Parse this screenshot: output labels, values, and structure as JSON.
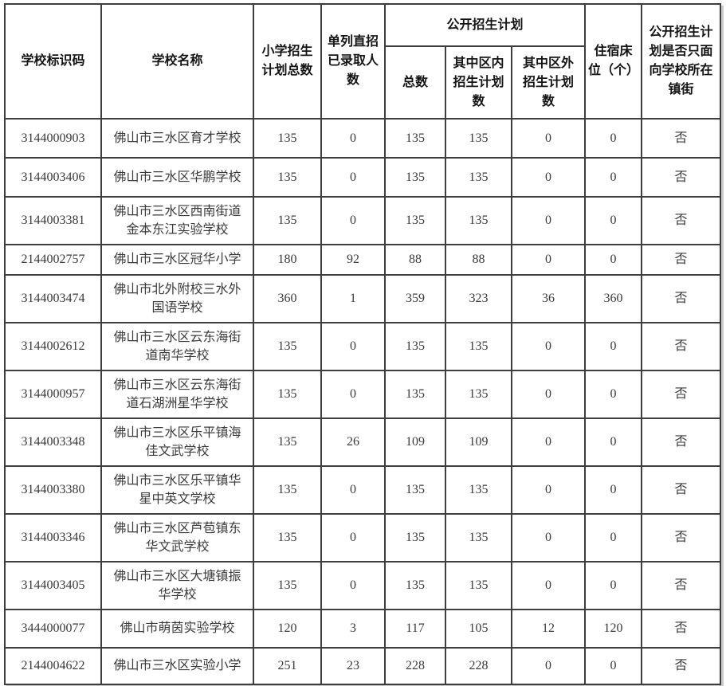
{
  "table": {
    "headers": {
      "school_id": "学校标识码",
      "school_name": "学校名称",
      "primary_plan_total": "小学招生\n计划总数",
      "direct_admitted": "单列直招\n已录取人\n数",
      "public_plan_group": "公开招生计划",
      "public_total": "总数",
      "in_district": "其中区内\n招生计划\n数",
      "out_district": "其中区外\n招生计划\n数",
      "beds": "住宿床\n位（个）",
      "only_local": "公开招生计\n划是否只面\n向学校所在\n镇街"
    },
    "rows": [
      {
        "id": "3144000903",
        "name": "佛山市三水区育才学校",
        "plan_total": "135",
        "direct_admitted": "0",
        "public_total": "135",
        "in_district": "135",
        "out_district": "0",
        "beds": "0",
        "only_local": "否"
      },
      {
        "id": "3144003406",
        "name": "佛山市三水区华鹏学校",
        "plan_total": "135",
        "direct_admitted": "0",
        "public_total": "135",
        "in_district": "135",
        "out_district": "0",
        "beds": "0",
        "only_local": "否"
      },
      {
        "id": "3144003381",
        "name": "佛山市三水区西南街道金本东江实验学校",
        "plan_total": "135",
        "direct_admitted": "0",
        "public_total": "135",
        "in_district": "135",
        "out_district": "0",
        "beds": "0",
        "only_local": "否"
      },
      {
        "id": "2144002757",
        "name": "佛山市三水区冠华小学",
        "plan_total": "180",
        "direct_admitted": "92",
        "public_total": "88",
        "in_district": "88",
        "out_district": "0",
        "beds": "0",
        "only_local": "否"
      },
      {
        "id": "3144003474",
        "name": "佛山市北外附校三水外国语学校",
        "plan_total": "360",
        "direct_admitted": "1",
        "public_total": "359",
        "in_district": "323",
        "out_district": "36",
        "beds": "360",
        "only_local": "否"
      },
      {
        "id": "3144002612",
        "name": "佛山市三水区云东海街道南华学校",
        "plan_total": "135",
        "direct_admitted": "0",
        "public_total": "135",
        "in_district": "135",
        "out_district": "0",
        "beds": "0",
        "only_local": "否"
      },
      {
        "id": "3144000957",
        "name": "佛山市三水区云东海街道石湖洲星华学校",
        "plan_total": "135",
        "direct_admitted": "0",
        "public_total": "135",
        "in_district": "135",
        "out_district": "0",
        "beds": "0",
        "only_local": "否"
      },
      {
        "id": "3144003348",
        "name": "佛山市三水区乐平镇海佳文武学校",
        "plan_total": "135",
        "direct_admitted": "26",
        "public_total": "109",
        "in_district": "109",
        "out_district": "0",
        "beds": "0",
        "only_local": "否"
      },
      {
        "id": "3144003380",
        "name": "佛山市三水区乐平镇华星中英文学校",
        "plan_total": "135",
        "direct_admitted": "0",
        "public_total": "135",
        "in_district": "135",
        "out_district": "0",
        "beds": "0",
        "only_local": "否"
      },
      {
        "id": "3144003346",
        "name": "佛山市三水区芦苞镇东华文武学校",
        "plan_total": "135",
        "direct_admitted": "0",
        "public_total": "135",
        "in_district": "135",
        "out_district": "0",
        "beds": "0",
        "only_local": "否"
      },
      {
        "id": "3144003405",
        "name": "佛山市三水区大塘镇振华学校",
        "plan_total": "135",
        "direct_admitted": "0",
        "public_total": "135",
        "in_district": "135",
        "out_district": "0",
        "beds": "0",
        "only_local": "否"
      },
      {
        "id": "3444000077",
        "name": "佛山市萌茵实验学校",
        "plan_total": "120",
        "direct_admitted": "3",
        "public_total": "117",
        "in_district": "105",
        "out_district": "12",
        "beds": "120",
        "only_local": "否"
      },
      {
        "id": "2144004622",
        "name": "佛山市三水区实验小学",
        "plan_total": "251",
        "direct_admitted": "23",
        "public_total": "228",
        "in_district": "228",
        "out_district": "0",
        "beds": "0",
        "only_local": "否"
      }
    ]
  }
}
